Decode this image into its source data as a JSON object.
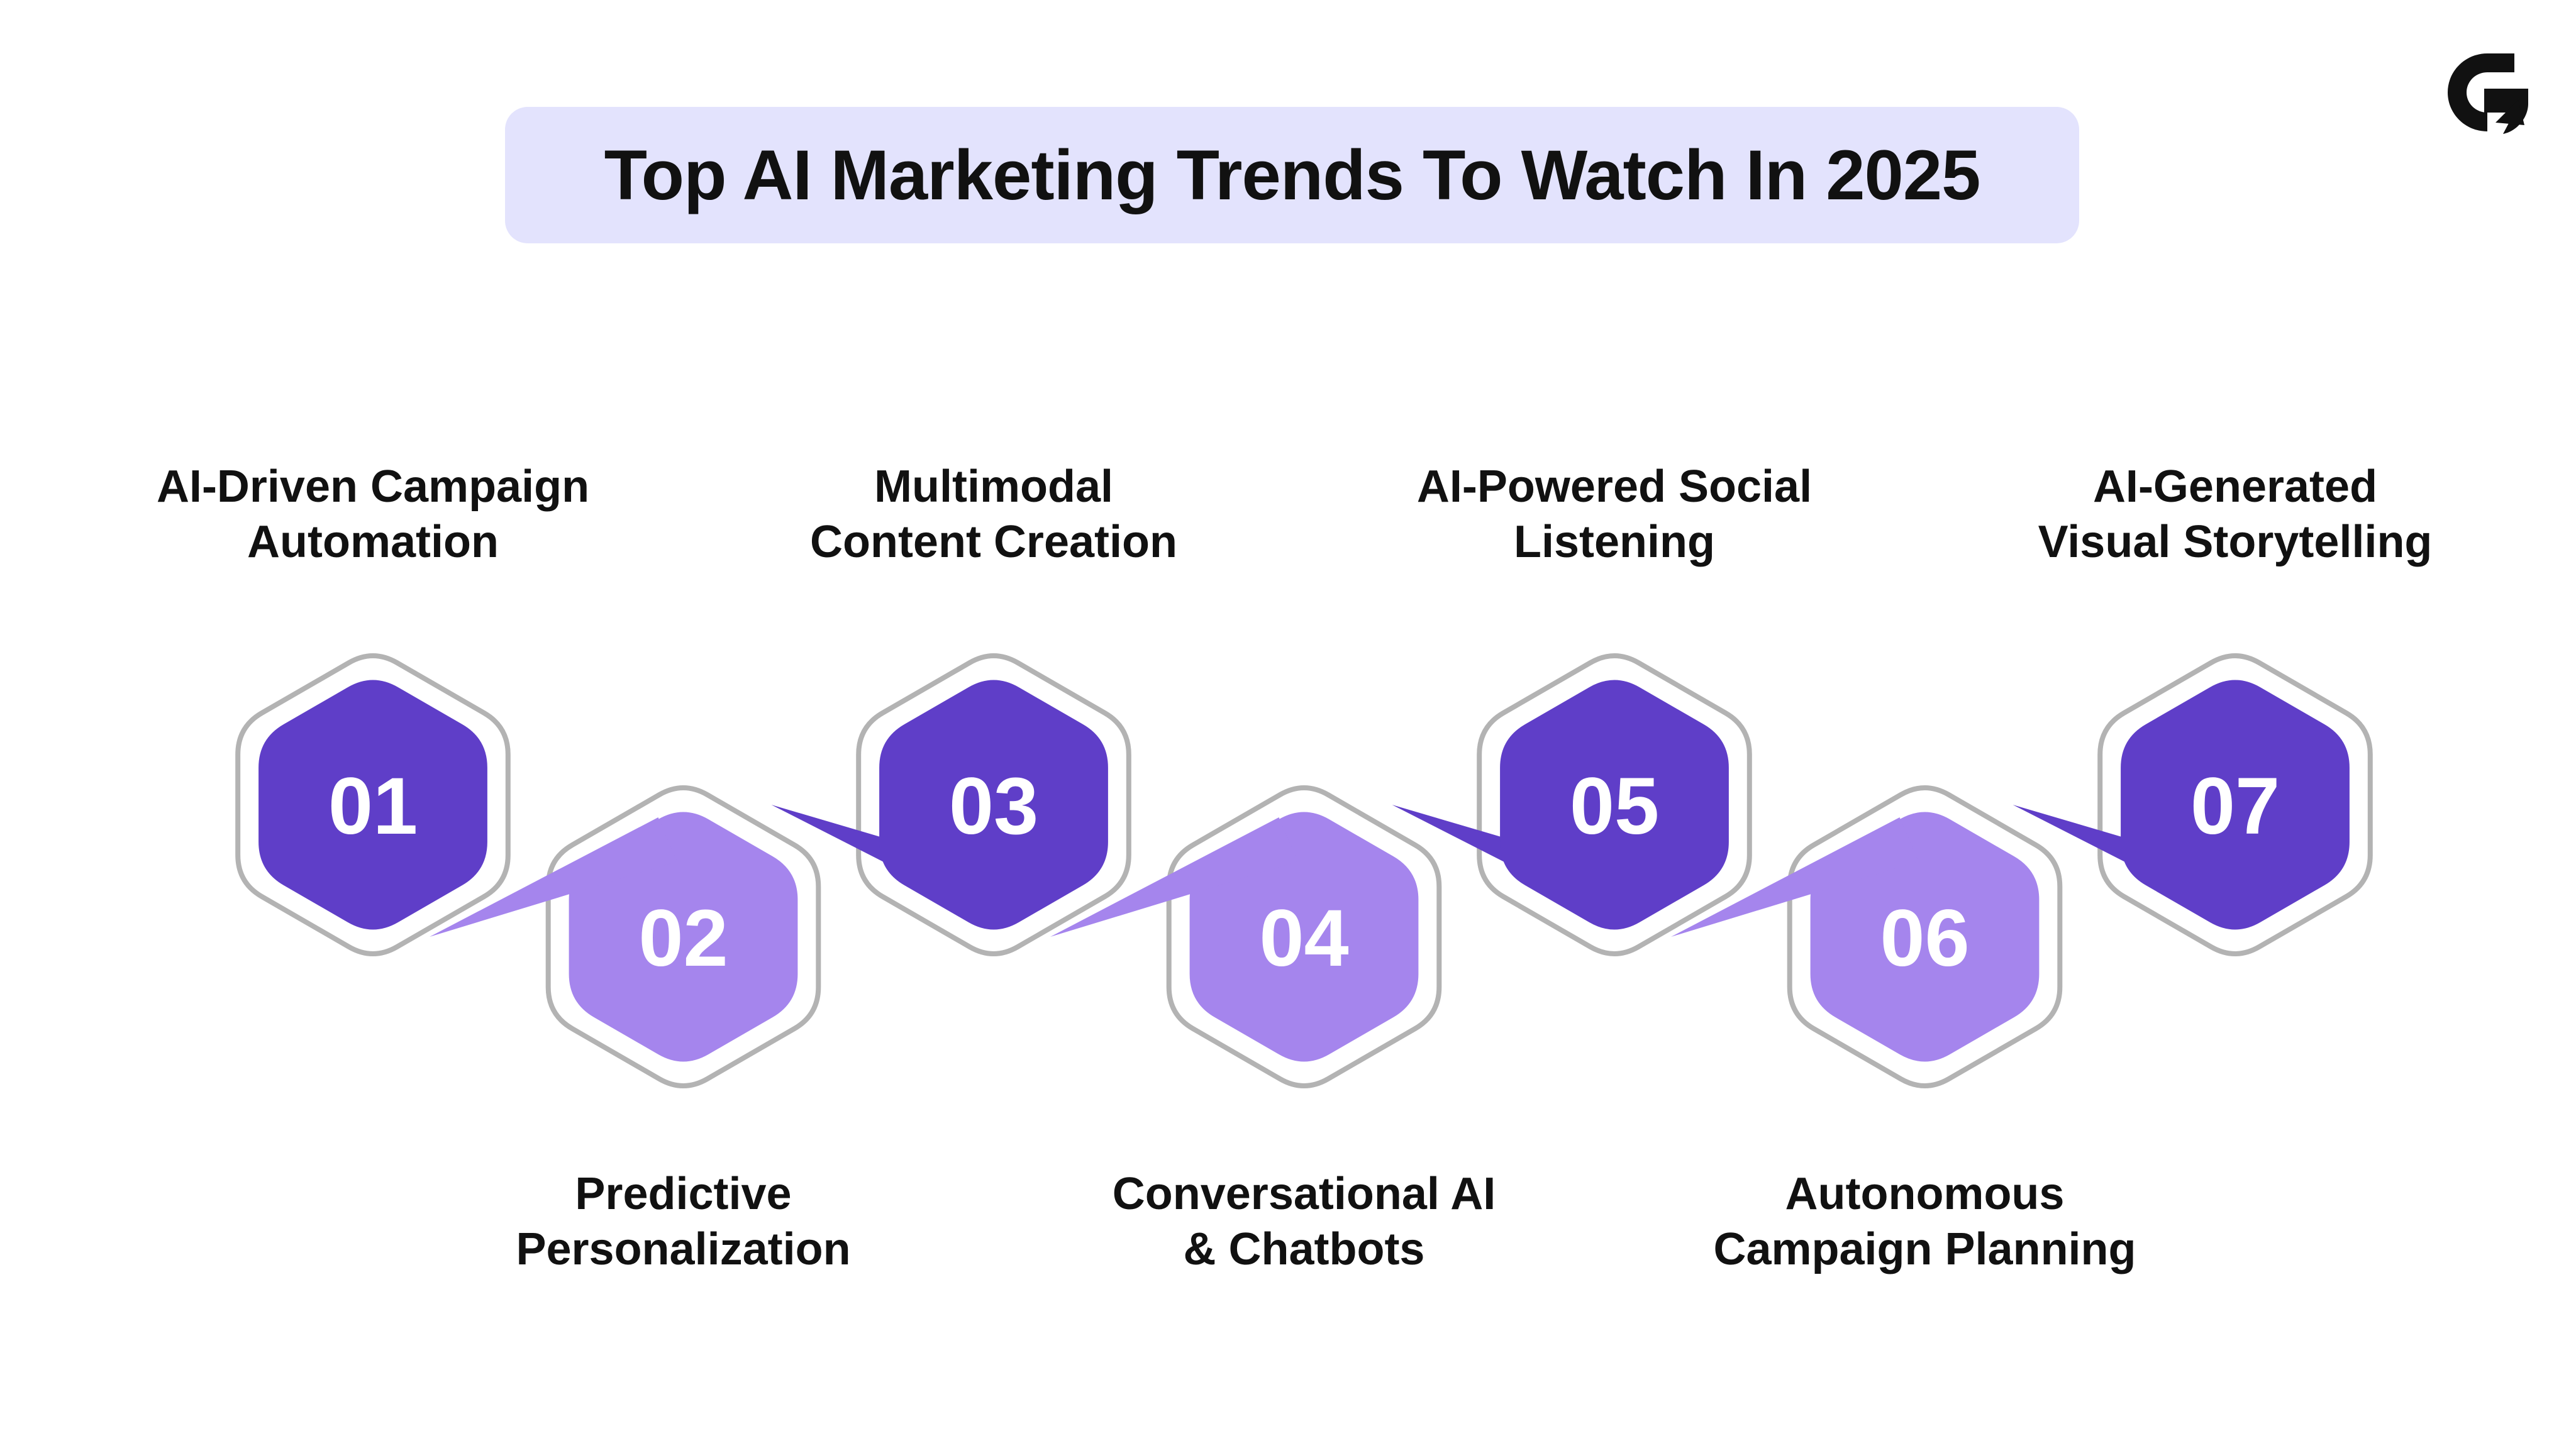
{
  "title": "Top AI Marketing Trends To Watch In 2025",
  "colors": {
    "title_bg": "#e3e3fd",
    "dark_hex": "#5f3ec8",
    "light_hex": "#a585ed",
    "outline": "#b3b3b3",
    "text": "#111111"
  },
  "logo": {
    "icon": "g-arrow-logo-icon"
  },
  "trends": [
    {
      "number": "01",
      "line1": "AI-Driven Campaign",
      "line2": "Automation",
      "position": "top"
    },
    {
      "number": "02",
      "line1": "Predictive",
      "line2": "Personalization",
      "position": "bottom"
    },
    {
      "number": "03",
      "line1": "Multimodal",
      "line2": "Content Creation",
      "position": "top"
    },
    {
      "number": "04",
      "line1": "Conversational AI",
      "line2": "& Chatbots",
      "position": "bottom"
    },
    {
      "number": "05",
      "line1": "AI-Powered Social",
      "line2": "Listening",
      "position": "top"
    },
    {
      "number": "06",
      "line1": "Autonomous",
      "line2": "Campaign Planning",
      "position": "bottom"
    },
    {
      "number": "07",
      "line1": "AI-Generated",
      "line2": "Visual Storytelling",
      "position": "top"
    }
  ]
}
